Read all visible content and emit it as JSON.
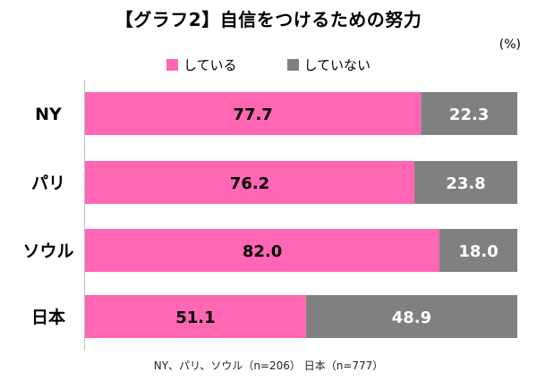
{
  "chart_data": {
    "type": "bar",
    "orientation": "horizontal",
    "stacked": true,
    "title": "【グラフ2】自信をつけるための努力",
    "unit": "(%)",
    "categories": [
      "NY",
      "パリ",
      "ソウル",
      "日本"
    ],
    "series": [
      {
        "name": "している",
        "values": [
          77.7,
          76.2,
          82.0,
          51.1
        ],
        "color": "#ff66b3"
      },
      {
        "name": "していない",
        "values": [
          22.3,
          23.8,
          18.0,
          48.9
        ],
        "color": "#808080"
      }
    ],
    "value_labels": [
      [
        "77.7",
        "76.2",
        "82.0",
        "51.1"
      ],
      [
        "22.3",
        "23.8",
        "18.0",
        "48.9"
      ]
    ],
    "xlim": [
      0,
      100
    ],
    "grid": false,
    "legend_position": "top",
    "footnote": "NY、パリ、ソウル（n=206） 日本（n=777）"
  }
}
